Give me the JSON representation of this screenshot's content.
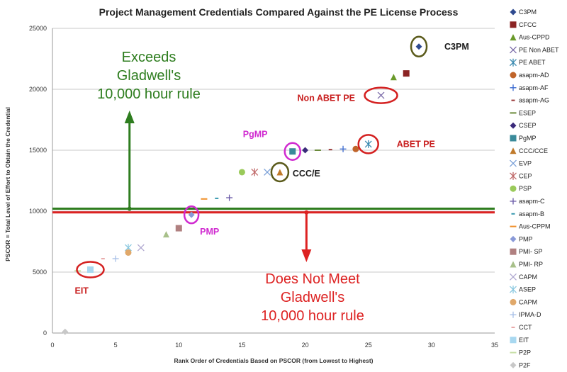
{
  "chart_data": {
    "type": "scatter",
    "title": "Project Management Credentials Compared Against the PE License Process",
    "xlabel": "Rank Order of Credentials Based on PSCOR (from Lowest to Highest)",
    "ylabel": "PSCOR = Total Level of Effort to Obtain the Credential",
    "xlim": [
      0,
      35
    ],
    "ylim": [
      0,
      25000
    ],
    "x_ticks": [
      "0",
      "5",
      "10",
      "15",
      "20",
      "25",
      "30",
      "35"
    ],
    "y_ticks": [
      "0",
      "5000",
      "10000",
      "15000",
      "20000",
      "25000"
    ],
    "grid": "horizontal",
    "legend_position": "right",
    "series": [
      {
        "name": "C3PM",
        "x": 29,
        "y": 23500,
        "color": "#2e4a8f",
        "marker": "diamond"
      },
      {
        "name": "CFCC",
        "x": 28,
        "y": 21300,
        "color": "#8b2323",
        "marker": "square"
      },
      {
        "name": "Aus-CPPD",
        "x": 27,
        "y": 21000,
        "color": "#6a9a2a",
        "marker": "triangle"
      },
      {
        "name": "PE Non ABET",
        "x": 26,
        "y": 19500,
        "color": "#7a6aa8",
        "marker": "x"
      },
      {
        "name": "PE ABET",
        "x": 25,
        "y": 15500,
        "color": "#3a8ab0",
        "marker": "star"
      },
      {
        "name": "asapm-AD",
        "x": 24,
        "y": 15100,
        "color": "#c0642a",
        "marker": "circle"
      },
      {
        "name": "asapm-AF",
        "x": 23,
        "y": 15100,
        "color": "#3a6ad0",
        "marker": "plus"
      },
      {
        "name": "asapm-AG",
        "x": 22,
        "y": 15050,
        "color": "#9a3a3a",
        "marker": "dash"
      },
      {
        "name": "ESEP",
        "x": 21,
        "y": 15000,
        "color": "#6a8a3a",
        "marker": "hline"
      },
      {
        "name": "CSEP",
        "x": 20,
        "y": 15000,
        "color": "#3a2a7a",
        "marker": "diamond"
      },
      {
        "name": "PgMP",
        "x": 19,
        "y": 14900,
        "color": "#3a8a9a",
        "marker": "square"
      },
      {
        "name": "CCC/CCE",
        "x": 18,
        "y": 13200,
        "color": "#c07a2a",
        "marker": "triangle"
      },
      {
        "name": "EVP",
        "x": 17,
        "y": 13200,
        "color": "#7aa0d8",
        "marker": "x"
      },
      {
        "name": "CEP",
        "x": 16,
        "y": 13200,
        "color": "#c06a6a",
        "marker": "star"
      },
      {
        "name": "PSP",
        "x": 15,
        "y": 13200,
        "color": "#9aca5a",
        "marker": "circle"
      },
      {
        "name": "asapm-C",
        "x": 14,
        "y": 11100,
        "color": "#6a5aa8",
        "marker": "plus"
      },
      {
        "name": "asapm-B",
        "x": 13,
        "y": 11050,
        "color": "#3a9ab0",
        "marker": "dash"
      },
      {
        "name": "Aus-CPPM",
        "x": 12,
        "y": 11000,
        "color": "#f0902a",
        "marker": "hline"
      },
      {
        "name": "PMP",
        "x": 11,
        "y": 9700,
        "color": "#8a9ad8",
        "marker": "diamond"
      },
      {
        "name": "PMI- SP",
        "x": 10,
        "y": 8600,
        "color": "#b08080",
        "marker": "square"
      },
      {
        "name": "PMI- RP",
        "x": 9,
        "y": 8100,
        "color": "#a8c08a",
        "marker": "triangle"
      },
      {
        "name": "CAPM",
        "x": 7,
        "y": 7000,
        "color": "#b0a8d0",
        "marker": "x"
      },
      {
        "name": "ASEP",
        "x": 6,
        "y": 7000,
        "color": "#8ac8e0",
        "marker": "star"
      },
      {
        "name": "CAPM",
        "x": 6,
        "y": 6600,
        "color": "#e0a86a",
        "marker": "circle"
      },
      {
        "name": "IPMA-D",
        "x": 5,
        "y": 6100,
        "color": "#a8c0e8",
        "marker": "plus"
      },
      {
        "name": "CCT",
        "x": 4,
        "y": 6100,
        "color": "#e8a8a8",
        "marker": "dash"
      },
      {
        "name": "EIT",
        "x": 3,
        "y": 5200,
        "color": "#a8d8f0",
        "marker": "square"
      },
      {
        "name": "P2P",
        "x": 2,
        "y": 5100,
        "color": "#c8e0a8",
        "marker": "hline"
      },
      {
        "name": "P2F",
        "x": 1,
        "y": 100,
        "color": "#c8c8c8",
        "marker": "diamond"
      }
    ],
    "reference_lines": [
      {
        "y": 10200,
        "color": "#2e7d1f"
      },
      {
        "y": 9900,
        "color": "#dd2222"
      }
    ],
    "annotations": {
      "exceeds": {
        "lines": [
          "Exceeds",
          "Gladwell's",
          "10,000 hour rule"
        ],
        "color": "#2e7d1f"
      },
      "not_meet": {
        "lines": [
          "Does Not Meet",
          "Gladwell's",
          "10,000 hour rule"
        ],
        "color": "#dd2222"
      },
      "labels": [
        {
          "text": "C3PM",
          "x": 29,
          "y": 23500,
          "color": "#1a1a1a",
          "ring": "#5a5a1a"
        },
        {
          "text": "Non ABET PE",
          "x": 26,
          "y": 19500,
          "color": "#c81e1e",
          "ring": "#d42020"
        },
        {
          "text": "ABET PE",
          "x": 25,
          "y": 15500,
          "color": "#c81e1e",
          "ring": "#d42020"
        },
        {
          "text": "PgMP",
          "x": 19,
          "y": 14900,
          "color": "#d02ad0",
          "ring": "#d02ad0"
        },
        {
          "text": "CCC/E",
          "x": 18,
          "y": 13200,
          "color": "#1a1a1a",
          "ring": "#5a5a1a"
        },
        {
          "text": "PMP",
          "x": 11,
          "y": 9700,
          "color": "#d02ad0",
          "ring": "#d02ad0"
        },
        {
          "text": "EIT",
          "x": 3,
          "y": 5200,
          "color": "#c81e1e",
          "ring": "#d42020"
        }
      ]
    }
  }
}
